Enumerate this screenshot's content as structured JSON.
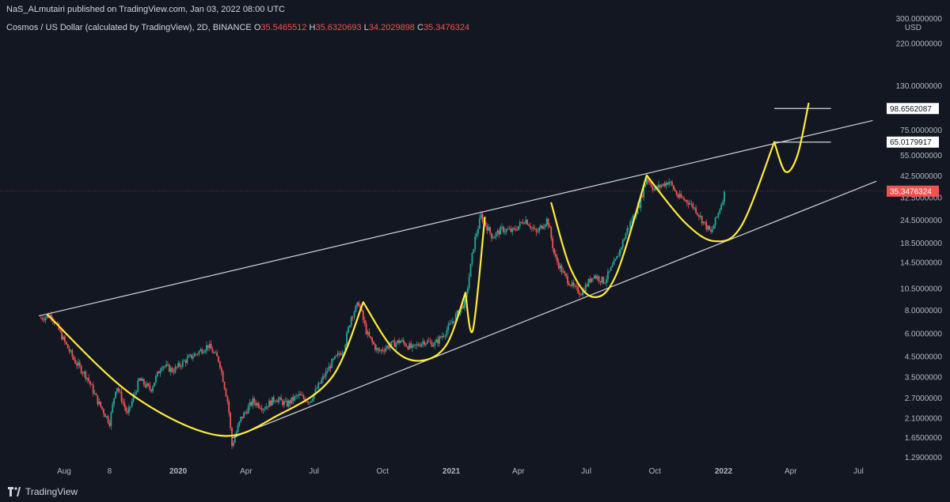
{
  "header": {
    "publisher": "NaS_ALmutairi published on TradingView.com, Jan 03, 2022 08:00 UTC",
    "symbol": "Cosmos / US Dollar (calculated by TradingView), 2D, BINANCE",
    "ohlc": [
      {
        "k": "O",
        "v": "35.5465512"
      },
      {
        "k": "H",
        "v": "35.6320693"
      },
      {
        "k": "L",
        "v": "34.2029898"
      },
      {
        "k": "C",
        "v": "35.3476324"
      }
    ]
  },
  "footer": {
    "brand": "TradingView"
  },
  "colors": {
    "background": "#131722",
    "up": "#26a69a",
    "down": "#ef5350",
    "drawing_yellow": "#ffeb3b",
    "trendline": "#d1d4dc",
    "price_tag": "#ef5350"
  },
  "chart_data": {
    "type": "candlestick",
    "title": "Cosmos / US Dollar (calculated by TradingView), 2D, BINANCE",
    "scale": "log",
    "currency": "USD",
    "y_ticks": [
      "300.0000000",
      "220.0000000",
      "130.0000000",
      "75.0000000",
      "55.0000000",
      "42.5000000",
      "32.5000000",
      "24.5000000",
      "18.5000000",
      "14.5000000",
      "10.5000000",
      "8.0000000",
      "6.0000000",
      "4.5000000",
      "3.5000000",
      "2.7000000",
      "2.1000000",
      "1.6500000",
      "1.2900000"
    ],
    "y_tick_values": [
      300,
      220,
      130,
      75,
      55,
      42.5,
      32.5,
      24.5,
      18.5,
      14.5,
      10.5,
      8,
      6,
      4.5,
      3.5,
      2.7,
      2.1,
      1.65,
      1.29
    ],
    "x_ticks": [
      "Aug",
      "8",
      "2020",
      "Apr",
      "Jul",
      "Oct",
      "2021",
      "Apr",
      "Jul",
      "Oct",
      "2022",
      "Apr",
      "Jul"
    ],
    "x_tick_bold": [
      false,
      false,
      true,
      false,
      false,
      false,
      true,
      false,
      false,
      false,
      true,
      false,
      false
    ],
    "last_price": "35.3476324",
    "price_labels": [
      "98.6562087",
      "65.0179917"
    ],
    "price_points": [
      [
        "2019-07-01",
        7.3
      ],
      [
        "2019-07-15",
        7.6
      ],
      [
        "2019-08-01",
        5.5
      ],
      [
        "2019-08-15",
        4.3
      ],
      [
        "2019-09-01",
        3.5
      ],
      [
        "2019-09-15",
        2.6
      ],
      [
        "2019-10-01",
        2.0
      ],
      [
        "2019-10-10",
        3.2
      ],
      [
        "2019-10-25",
        2.2
      ],
      [
        "2019-11-10",
        3.4
      ],
      [
        "2019-11-25",
        3.0
      ],
      [
        "2019-12-10",
        4.1
      ],
      [
        "2019-12-25",
        3.8
      ],
      [
        "2020-01-10",
        4.3
      ],
      [
        "2020-01-25",
        4.7
      ],
      [
        "2020-02-10",
        5.2
      ],
      [
        "2020-02-25",
        4.3
      ],
      [
        "2020-03-08",
        2.5
      ],
      [
        "2020-03-13",
        1.5
      ],
      [
        "2020-03-25",
        2.1
      ],
      [
        "2020-04-10",
        2.6
      ],
      [
        "2020-04-25",
        2.4
      ],
      [
        "2020-05-10",
        2.7
      ],
      [
        "2020-05-25",
        2.5
      ],
      [
        "2020-06-10",
        2.8
      ],
      [
        "2020-06-25",
        2.6
      ],
      [
        "2020-07-10",
        3.3
      ],
      [
        "2020-07-25",
        4.2
      ],
      [
        "2020-08-10",
        5.0
      ],
      [
        "2020-08-20",
        7.5
      ],
      [
        "2020-08-30",
        8.8
      ],
      [
        "2020-09-10",
        6.0
      ],
      [
        "2020-09-25",
        4.8
      ],
      [
        "2020-10-10",
        5.2
      ],
      [
        "2020-10-25",
        5.5
      ],
      [
        "2020-11-10",
        5.0
      ],
      [
        "2020-11-25",
        5.5
      ],
      [
        "2020-12-10",
        5.3
      ],
      [
        "2020-12-25",
        6.2
      ],
      [
        "2021-01-10",
        7.8
      ],
      [
        "2021-01-20",
        9.0
      ],
      [
        "2021-02-01",
        19.0
      ],
      [
        "2021-02-10",
        26.0
      ],
      [
        "2021-02-25",
        20.0
      ],
      [
        "2021-03-10",
        22.0
      ],
      [
        "2021-03-25",
        21.5
      ],
      [
        "2021-04-10",
        25.0
      ],
      [
        "2021-04-25",
        21.0
      ],
      [
        "2021-05-10",
        25.0
      ],
      [
        "2021-05-20",
        15.5
      ],
      [
        "2021-06-01",
        12.5
      ],
      [
        "2021-06-15",
        10.5
      ],
      [
        "2021-06-25",
        10.0
      ],
      [
        "2021-07-10",
        12.5
      ],
      [
        "2021-07-25",
        11.5
      ],
      [
        "2021-08-10",
        15.0
      ],
      [
        "2021-08-25",
        22.0
      ],
      [
        "2021-09-10",
        30.0
      ],
      [
        "2021-09-20",
        42.0
      ],
      [
        "2021-09-30",
        36.0
      ],
      [
        "2021-10-10",
        38.0
      ],
      [
        "2021-10-20",
        40.0
      ],
      [
        "2021-11-01",
        33.0
      ],
      [
        "2021-11-15",
        31.0
      ],
      [
        "2021-11-25",
        28.0
      ],
      [
        "2021-12-05",
        24.0
      ],
      [
        "2021-12-15",
        21.0
      ],
      [
        "2021-12-25",
        27.0
      ],
      [
        "2022-01-03",
        35.3
      ]
    ],
    "drawings": {
      "upper_trendline": [
        [
          "2019-06-28",
          7.5
        ],
        [
          "2022-07-20",
          85.0
        ]
      ],
      "lower_trendline": [
        [
          "2020-03-13",
          1.65
        ],
        [
          "2022-07-25",
          40.0
        ]
      ],
      "upper_marker_line": [
        [
          "2022-03-10",
          98.66
        ],
        [
          "2022-05-25",
          98.66
        ]
      ],
      "lower_marker_line": [
        [
          "2022-03-10",
          65.02
        ],
        [
          "2022-05-25",
          65.02
        ]
      ],
      "cup_curves": [
        [
          [
            "2019-07-10",
            7.6
          ],
          [
            "2019-11-01",
            2.8
          ],
          [
            "2020-02-25",
            1.7
          ],
          [
            "2020-05-15",
            2.2
          ],
          [
            "2020-07-25",
            3.5
          ],
          [
            "2020-09-05",
            8.9
          ]
        ],
        [
          [
            "2020-09-05",
            8.9
          ],
          [
            "2020-10-15",
            5.0
          ],
          [
            "2020-11-20",
            4.3
          ],
          [
            "2020-12-25",
            5.2
          ],
          [
            "2021-01-20",
            10.0
          ]
        ],
        [
          [
            "2021-01-20",
            10.0
          ],
          [
            "2021-01-30",
            6.3
          ],
          [
            "2021-02-15",
            25.5
          ]
        ],
        [
          [
            "2021-05-15",
            30.5
          ],
          [
            "2021-06-10",
            13.5
          ],
          [
            "2021-07-10",
            9.5
          ],
          [
            "2021-08-10",
            12.5
          ],
          [
            "2021-09-20",
            43.0
          ]
        ],
        [
          [
            "2021-09-20",
            43.0
          ],
          [
            "2021-11-10",
            24.0
          ],
          [
            "2021-12-20",
            19.0
          ],
          [
            "2022-01-25",
            23.0
          ],
          [
            "2022-03-10",
            65.0
          ]
        ],
        [
          [
            "2022-03-10",
            65.0
          ],
          [
            "2022-03-25",
            45.0
          ],
          [
            "2022-04-10",
            55.0
          ],
          [
            "2022-04-25",
            105.0
          ]
        ]
      ]
    }
  }
}
